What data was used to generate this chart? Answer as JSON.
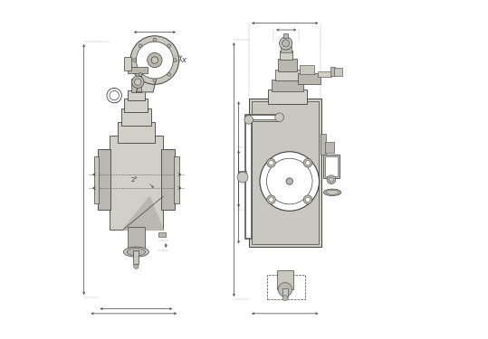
{
  "bg_color": "#ffffff",
  "line_color": "#404040",
  "fill_color": "#d0d0c8",
  "fill_color2": "#b8b8b0",
  "fill_color3": "#c8c8c0",
  "dim_line_color": "#202020",
  "title": "",
  "figsize": [
    5.39,
    3.75
  ],
  "dpi": 100
}
